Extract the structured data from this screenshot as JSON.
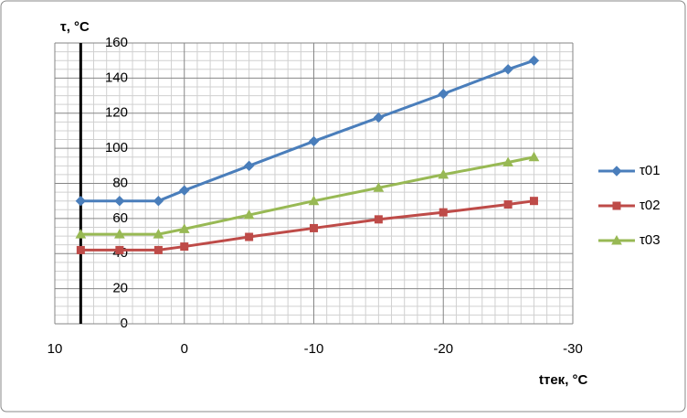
{
  "chart_data": {
    "type": "line",
    "ylabel": "τ, °C",
    "xlabel": "tтек, °C",
    "x": [
      8,
      5,
      2,
      0,
      -5,
      -10,
      -15,
      -20,
      -25,
      -27
    ],
    "series": [
      {
        "name": "τ01",
        "color": "#4a7ebb",
        "marker": "diamond",
        "values": [
          70,
          70,
          70,
          76,
          90,
          104,
          117.5,
          131,
          145,
          150
        ]
      },
      {
        "name": "τ02",
        "color": "#be4b48",
        "marker": "square",
        "values": [
          42,
          42,
          42,
          44,
          49.5,
          54.5,
          59.5,
          63.5,
          68,
          70
        ]
      },
      {
        "name": "τ03",
        "color": "#98b954",
        "marker": "triangle",
        "values": [
          51,
          51,
          51,
          54,
          62,
          70,
          77.5,
          85,
          92,
          95
        ]
      }
    ],
    "xlim": [
      10,
      -30
    ],
    "xticks": [
      10,
      0,
      -10,
      -20,
      -30
    ],
    "ylim": [
      0,
      160
    ],
    "yticks": [
      0,
      20,
      40,
      60,
      80,
      100,
      120,
      140,
      160
    ],
    "y_axis_crosses": 8,
    "grid": true,
    "legend": "right"
  }
}
